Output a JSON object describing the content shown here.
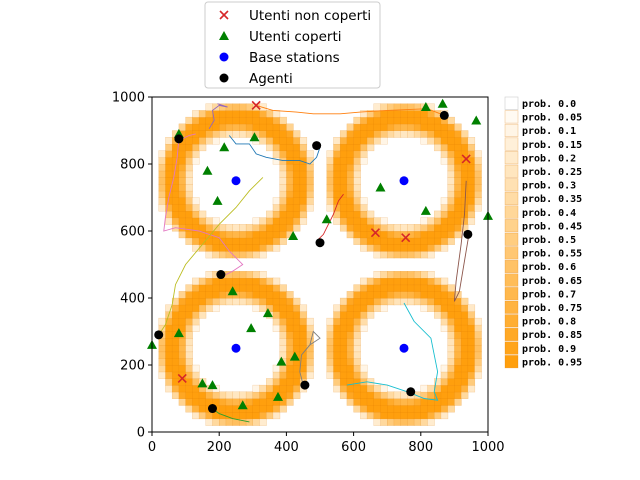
{
  "chart_data": {
    "type": "scatter",
    "xlim": [
      0,
      1000
    ],
    "ylim": [
      0,
      1000
    ],
    "x_ticks": [
      0,
      200,
      400,
      600,
      800,
      1000
    ],
    "y_ticks": [
      0,
      200,
      400,
      600,
      800,
      1000
    ],
    "grid": false,
    "legend_placement": "top-center, outside the axes",
    "legend": [
      {
        "label": "Utenti non coperti",
        "marker": "x",
        "color": "#d62728"
      },
      {
        "label": "Utenti coperti",
        "marker": "triangle",
        "color": "#008000"
      },
      {
        "label": "Base stations",
        "marker": "circle",
        "color": "#0000ff"
      },
      {
        "label": "Agenti",
        "marker": "circle",
        "color": "#000000"
      }
    ],
    "series": [
      {
        "name": "Utenti non coperti",
        "points": [
          [
            310,
            975
          ],
          [
            935,
            815
          ],
          [
            665,
            595
          ],
          [
            755,
            580
          ],
          [
            90,
            160
          ]
        ]
      },
      {
        "name": "Utenti coperti",
        "points": [
          [
            80,
            890
          ],
          [
            215,
            850
          ],
          [
            305,
            880
          ],
          [
            865,
            980
          ],
          [
            815,
            970
          ],
          [
            965,
            930
          ],
          [
            165,
            780
          ],
          [
            195,
            690
          ],
          [
            680,
            730
          ],
          [
            815,
            660
          ],
          [
            1000,
            645
          ],
          [
            520,
            635
          ],
          [
            420,
            585
          ],
          [
            240,
            420
          ],
          [
            0,
            260
          ],
          [
            80,
            295
          ],
          [
            295,
            310
          ],
          [
            345,
            355
          ],
          [
            385,
            210
          ],
          [
            425,
            225
          ],
          [
            150,
            145
          ],
          [
            180,
            140
          ],
          [
            270,
            80
          ],
          [
            375,
            105
          ]
        ]
      },
      {
        "name": "Base stations",
        "points": [
          [
            250,
            750
          ],
          [
            750,
            750
          ],
          [
            250,
            250
          ],
          [
            750,
            250
          ]
        ]
      },
      {
        "name": "Agenti",
        "points": [
          [
            80,
            875
          ],
          [
            490,
            855
          ],
          [
            870,
            945
          ],
          [
            500,
            565
          ],
          [
            940,
            590
          ],
          [
            205,
            470
          ],
          [
            20,
            290
          ],
          [
            455,
            140
          ],
          [
            770,
            120
          ],
          [
            180,
            70
          ]
        ]
      }
    ],
    "trajectories": [
      {
        "color": "#9467bd",
        "points": [
          [
            170,
            905
          ],
          [
            185,
            930
          ],
          [
            180,
            960
          ],
          [
            200,
            975
          ],
          [
            225,
            970
          ],
          [
            195,
            980
          ]
        ]
      },
      {
        "color": "#e377c2",
        "points": [
          [
            80,
            870
          ],
          [
            110,
            885
          ],
          [
            130,
            890
          ]
        ]
      },
      {
        "color": "#1f77b4",
        "points": [
          [
            230,
            885
          ],
          [
            250,
            860
          ],
          [
            290,
            860
          ],
          [
            310,
            830
          ],
          [
            340,
            820
          ],
          [
            390,
            810
          ],
          [
            440,
            810
          ],
          [
            470,
            800
          ],
          [
            490,
            820
          ],
          [
            500,
            850
          ],
          [
            485,
            860
          ]
        ]
      },
      {
        "color": "#ff7f0e",
        "points": [
          [
            310,
            975
          ],
          [
            360,
            960
          ],
          [
            430,
            955
          ],
          [
            480,
            950
          ],
          [
            560,
            950
          ],
          [
            620,
            955
          ],
          [
            700,
            960
          ],
          [
            820,
            965
          ],
          [
            870,
            945
          ]
        ]
      },
      {
        "color": "#8c564b",
        "points": [
          [
            935,
            750
          ],
          [
            930,
            650
          ],
          [
            920,
            560
          ],
          [
            905,
            450
          ],
          [
            900,
            390
          ],
          [
            915,
            420
          ],
          [
            945,
            600
          ]
        ]
      },
      {
        "color": "#d62728",
        "points": [
          [
            570,
            710
          ],
          [
            555,
            690
          ],
          [
            540,
            650
          ],
          [
            520,
            610
          ],
          [
            510,
            590
          ],
          [
            495,
            575
          ]
        ]
      },
      {
        "color": "#e377c2",
        "points": [
          [
            80,
            875
          ],
          [
            75,
            820
          ],
          [
            65,
            760
          ],
          [
            50,
            700
          ],
          [
            40,
            640
          ],
          [
            35,
            600
          ],
          [
            70,
            610
          ],
          [
            140,
            600
          ],
          [
            200,
            580
          ],
          [
            230,
            540
          ],
          [
            250,
            520
          ],
          [
            270,
            500
          ],
          [
            240,
            480
          ],
          [
            220,
            470
          ]
        ]
      },
      {
        "color": "#bcbd22",
        "points": [
          [
            330,
            760
          ],
          [
            290,
            720
          ],
          [
            250,
            670
          ],
          [
            200,
            620
          ],
          [
            150,
            560
          ],
          [
            100,
            500
          ],
          [
            70,
            440
          ],
          [
            60,
            380
          ],
          [
            40,
            320
          ],
          [
            20,
            290
          ]
        ]
      },
      {
        "color": "#7f7f7f",
        "points": [
          [
            450,
            140
          ],
          [
            440,
            180
          ],
          [
            445,
            230
          ],
          [
            470,
            260
          ],
          [
            500,
            280
          ],
          [
            480,
            300
          ],
          [
            470,
            260
          ]
        ]
      },
      {
        "color": "#17becf",
        "points": [
          [
            750,
            385
          ],
          [
            780,
            330
          ],
          [
            830,
            280
          ],
          [
            850,
            180
          ],
          [
            840,
            120
          ],
          [
            850,
            95
          ],
          [
            810,
            100
          ],
          [
            760,
            120
          ],
          [
            700,
            140
          ],
          [
            640,
            150
          ],
          [
            580,
            140
          ]
        ]
      },
      {
        "color": "#2ca02c",
        "points": [
          [
            180,
            70
          ],
          [
            200,
            55
          ],
          [
            240,
            40
          ],
          [
            290,
            30
          ]
        ]
      }
    ],
    "colorbar_labels": [
      "prob. 0.0",
      "prob. 0.05",
      "prob. 0.1",
      "prob. 0.15",
      "prob. 0.2",
      "prob. 0.25",
      "prob. 0.3",
      "prob. 0.35",
      "prob. 0.4",
      "prob. 0.45",
      "prob. 0.5",
      "prob. 0.55",
      "prob. 0.6",
      "prob. 0.65",
      "prob. 0.7",
      "prob. 0.75",
      "prob. 0.8",
      "prob. 0.85",
      "prob. 0.9",
      "prob. 0.95"
    ],
    "probability_heatmap": {
      "grid_size": 50,
      "background_color": "#ffffff",
      "high_color": "#ff9a00",
      "note_level": "coverage probability around each base station: high in a ring, zero near the station"
    }
  }
}
